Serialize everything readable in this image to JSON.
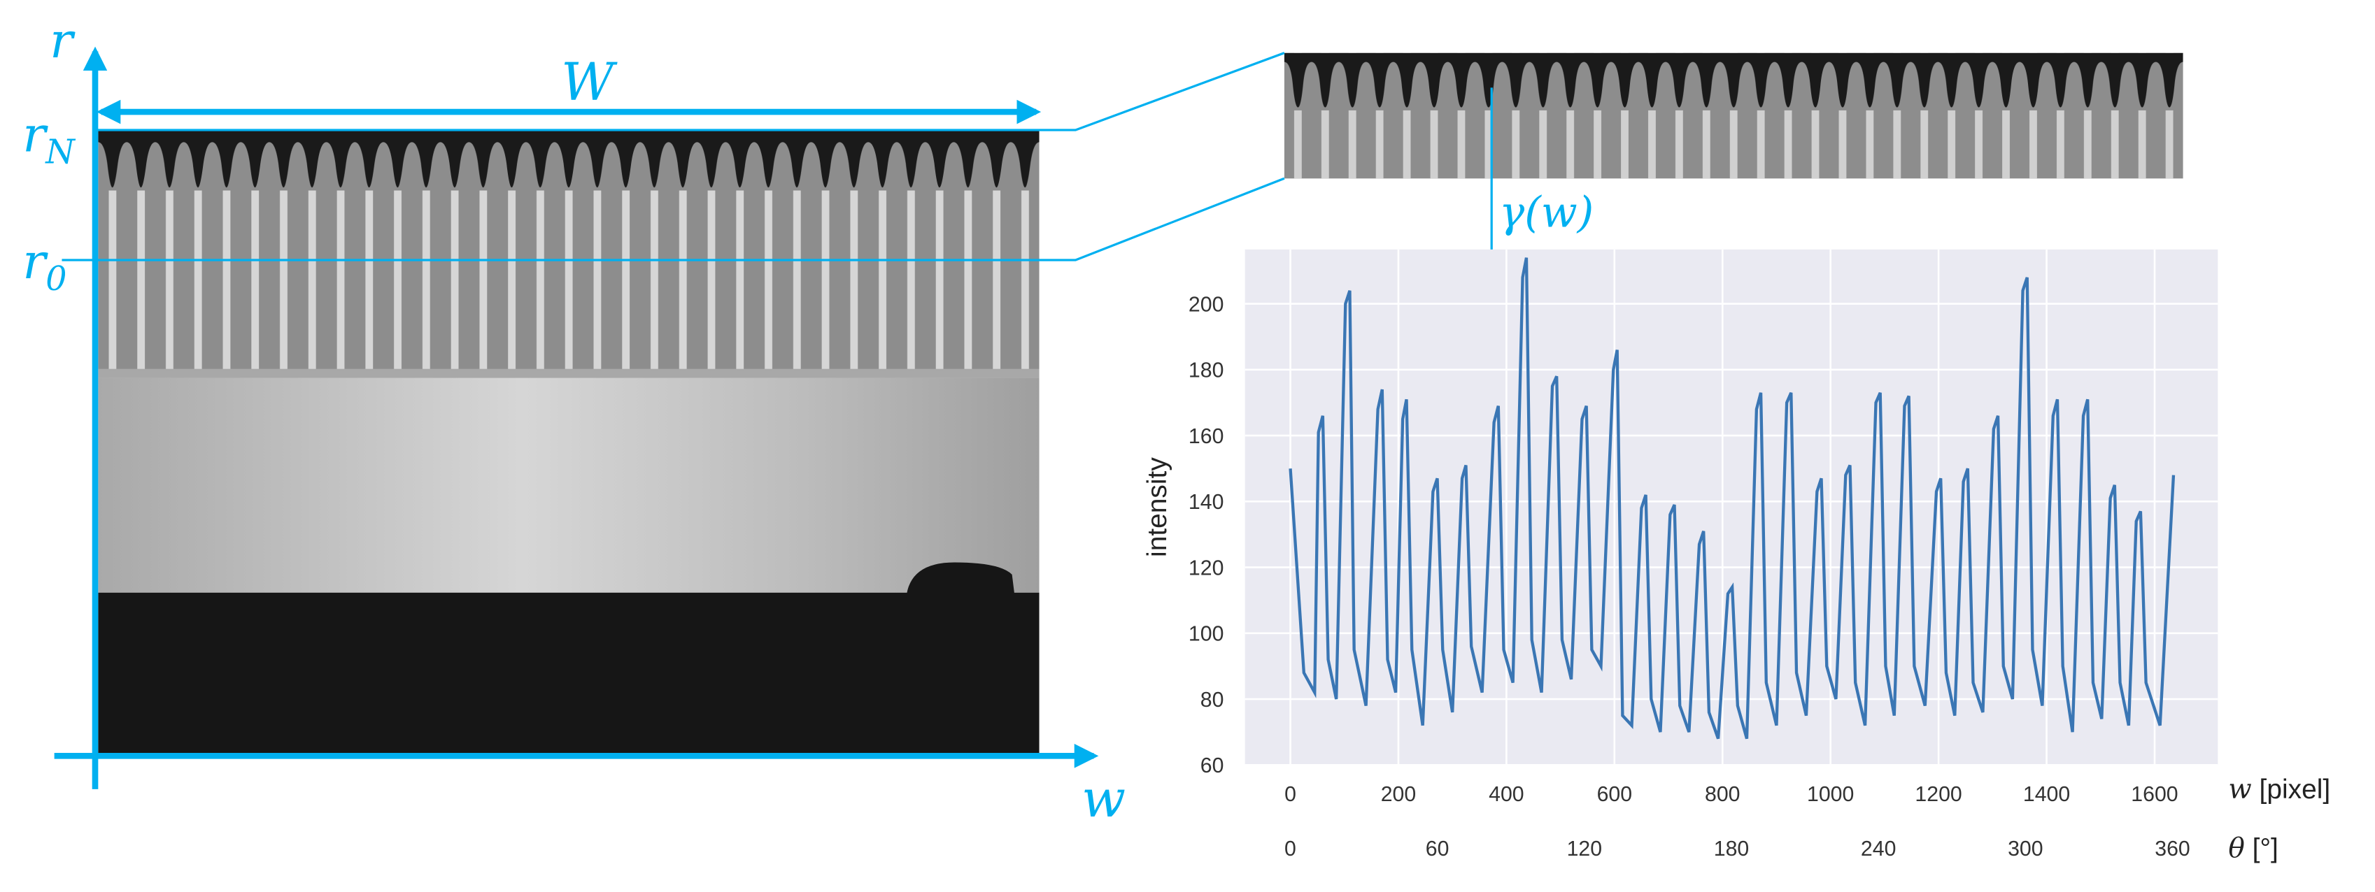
{
  "annotations": {
    "r_axis": "r",
    "r_N": {
      "base": "r",
      "sub": "N"
    },
    "r_0": {
      "base": "r",
      "sub": "0"
    },
    "width": "W",
    "w_axis": "w",
    "profile": "γ(w)"
  },
  "chart_data": {
    "type": "line",
    "ylabel": "intensity",
    "xlabel": {
      "var": "w",
      "unit": "[pixel]"
    },
    "x2label": {
      "var": "θ",
      "unit": "[°]"
    },
    "xlim": [
      -84,
      1717
    ],
    "ylim": [
      60,
      216.5
    ],
    "xticks": [
      0,
      200,
      400,
      600,
      800,
      1000,
      1200,
      1400,
      1600
    ],
    "yticks": [
      60,
      80,
      100,
      120,
      140,
      160,
      180,
      200
    ],
    "x2lim": [
      -18.5,
      378.5
    ],
    "x2ticks": [
      0,
      60,
      120,
      180,
      240,
      300,
      360
    ],
    "grid": true,
    "series": [
      {
        "name": "intensity",
        "color": "#3a76b4",
        "x": [
          0,
          25,
          45,
          52,
          60,
          70,
          85,
          102,
          110,
          118,
          140,
          162,
          170,
          180,
          195,
          208,
          215,
          225,
          245,
          264,
          272,
          282,
          300,
          318,
          325,
          335,
          355,
          377,
          385,
          395,
          412,
          430,
          437,
          447,
          465,
          485,
          493,
          503,
          520,
          540,
          548,
          558,
          575,
          598,
          605,
          615,
          632,
          650,
          658,
          668,
          685,
          703,
          711,
          721,
          738,
          757,
          765,
          775,
          792,
          810,
          818,
          828,
          845,
          863,
          871,
          881,
          900,
          919,
          927,
          937,
          955,
          975,
          983,
          993,
          1010,
          1028,
          1036,
          1046,
          1064,
          1084,
          1092,
          1102,
          1118,
          1137,
          1145,
          1155,
          1175,
          1196,
          1204,
          1214,
          1230,
          1246,
          1254,
          1264,
          1282,
          1302,
          1310,
          1320,
          1337,
          1356,
          1364,
          1374,
          1392,
          1412,
          1420,
          1430,
          1448,
          1468,
          1476,
          1486,
          1502,
          1518,
          1526,
          1536,
          1552,
          1566,
          1574,
          1584,
          1610,
          1635
        ],
        "values": [
          150,
          88,
          82,
          161,
          166,
          92,
          80,
          200,
          204,
          95,
          78,
          168,
          174,
          92,
          82,
          165,
          171,
          95,
          72,
          143,
          147,
          95,
          76,
          147,
          151,
          96,
          82,
          164,
          169,
          95,
          85,
          208,
          214,
          98,
          82,
          175,
          178,
          98,
          86,
          165,
          169,
          95,
          90,
          180,
          186,
          75,
          72,
          138,
          142,
          80,
          70,
          136,
          139,
          78,
          70,
          127,
          131,
          76,
          68,
          112,
          114,
          78,
          68,
          168,
          173,
          85,
          72,
          170,
          173,
          88,
          75,
          143,
          147,
          90,
          80,
          148,
          151,
          85,
          72,
          170,
          173,
          90,
          75,
          169,
          172,
          90,
          78,
          143,
          147,
          88,
          75,
          146,
          150,
          85,
          76,
          162,
          166,
          90,
          80,
          204,
          208,
          95,
          78,
          166,
          171,
          90,
          70,
          166,
          171,
          85,
          74,
          141,
          145,
          85,
          72,
          134,
          137,
          85,
          72,
          148
        ]
      }
    ]
  }
}
